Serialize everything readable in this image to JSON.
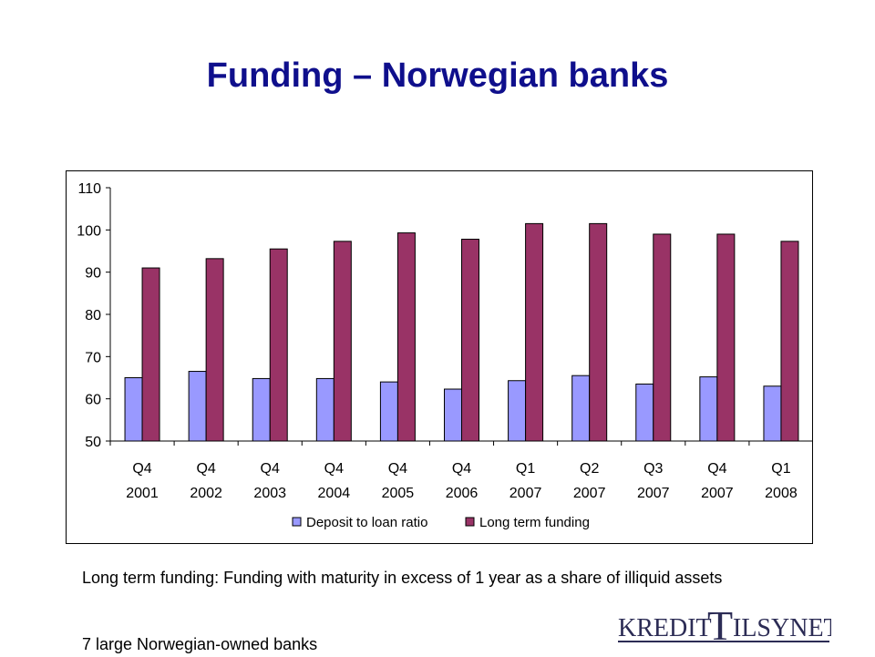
{
  "page": {
    "title": "Funding – Norwegian banks"
  },
  "notes": {
    "definition": "Long term funding: Funding with maturity in excess of 1 year as a share of illiquid assets",
    "sample": "7 large Norwegian-owned banks"
  },
  "logo": {
    "text_left": "KREDIT",
    "text_big": "T",
    "text_right": "ILSYNET"
  },
  "colors": {
    "title": "#0f0f8c",
    "deposit": "#9999ff",
    "longterm": "#993366"
  },
  "chart_data": {
    "type": "bar",
    "title": "",
    "xlabel": "",
    "ylabel": "",
    "categories": [
      [
        "Q4",
        "2001"
      ],
      [
        "Q4",
        "2002"
      ],
      [
        "Q4",
        "2003"
      ],
      [
        "Q4",
        "2004"
      ],
      [
        "Q4",
        "2005"
      ],
      [
        "Q4",
        "2006"
      ],
      [
        "Q1",
        "2007"
      ],
      [
        "Q2",
        "2007"
      ],
      [
        "Q3",
        "2007"
      ],
      [
        "Q4",
        "2007"
      ],
      [
        "Q1",
        "2008"
      ]
    ],
    "series": [
      {
        "name": "Deposit to loan ratio",
        "values": [
          65,
          66.5,
          64.8,
          64.8,
          64,
          62.3,
          64.3,
          65.5,
          63.5,
          65.2,
          63
        ]
      },
      {
        "name": "Long term funding",
        "values": [
          91,
          93.2,
          95.5,
          97.3,
          99.3,
          97.8,
          101.5,
          101.5,
          99,
          99,
          97.3
        ]
      }
    ],
    "ylim": [
      50,
      110
    ],
    "yticks": [
      "50",
      "60",
      "70",
      "80",
      "90",
      "100",
      "110"
    ],
    "grid": false,
    "legend": "bottom"
  }
}
